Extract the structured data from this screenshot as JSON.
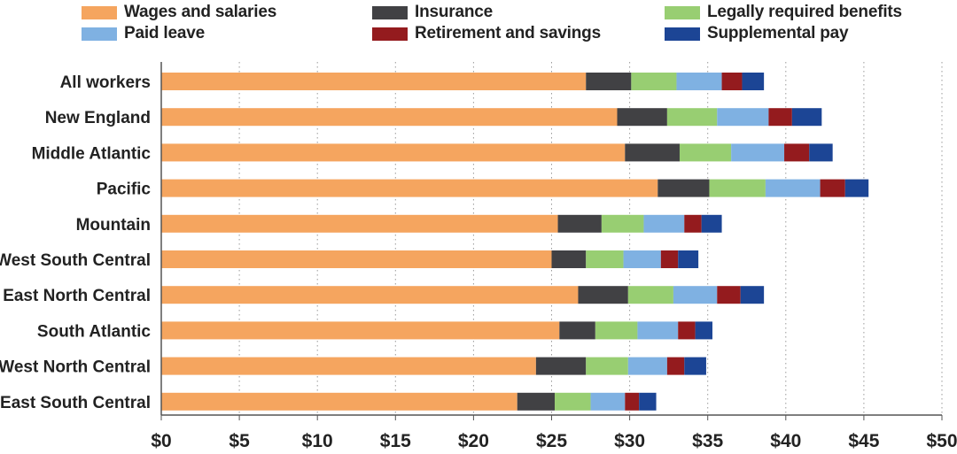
{
  "chart_data": {
    "type": "bar",
    "orientation": "horizontal",
    "stacked": true,
    "title": "",
    "xlabel": "",
    "ylabel": "",
    "xlim": [
      0,
      50
    ],
    "x_ticks": [
      "$0",
      "$5",
      "$10",
      "$15",
      "$20",
      "$25",
      "$30",
      "$35",
      "$40",
      "$45",
      "$50"
    ],
    "x_tick_values": [
      0,
      5,
      10,
      15,
      20,
      25,
      30,
      35,
      40,
      45,
      50
    ],
    "grid": "vertical dotted",
    "legend_position": "top",
    "categories": [
      "All workers",
      "New England",
      "Middle Atlantic",
      "Pacific",
      "Mountain",
      "West South Central",
      "East North Central",
      "South Atlantic",
      "West North Central",
      "East South Central"
    ],
    "series": [
      {
        "name": "Wages and salaries",
        "color": "#F5A55F",
        "values": [
          27.2,
          29.2,
          29.7,
          31.8,
          25.4,
          25.0,
          26.7,
          25.5,
          24.0,
          22.8
        ]
      },
      {
        "name": "Insurance",
        "color": "#414144",
        "values": [
          2.9,
          3.2,
          3.5,
          3.3,
          2.8,
          2.2,
          3.2,
          2.3,
          3.2,
          2.4
        ]
      },
      {
        "name": "Legally required benefits",
        "color": "#98CE72",
        "values": [
          2.9,
          3.2,
          3.3,
          3.6,
          2.7,
          2.4,
          2.9,
          2.7,
          2.7,
          2.3
        ]
      },
      {
        "name": "Paid leave",
        "color": "#7FB1E2",
        "values": [
          2.9,
          3.3,
          3.4,
          3.5,
          2.6,
          2.4,
          2.8,
          2.6,
          2.5,
          2.2
        ]
      },
      {
        "name": "Retirement and savings",
        "color": "#941B1E",
        "values": [
          1.3,
          1.5,
          1.6,
          1.6,
          1.1,
          1.1,
          1.5,
          1.1,
          1.1,
          0.9
        ]
      },
      {
        "name": "Supplemental pay",
        "color": "#1C4595",
        "values": [
          1.4,
          1.9,
          1.5,
          1.5,
          1.3,
          1.3,
          1.5,
          1.1,
          1.4,
          1.1
        ]
      }
    ]
  }
}
